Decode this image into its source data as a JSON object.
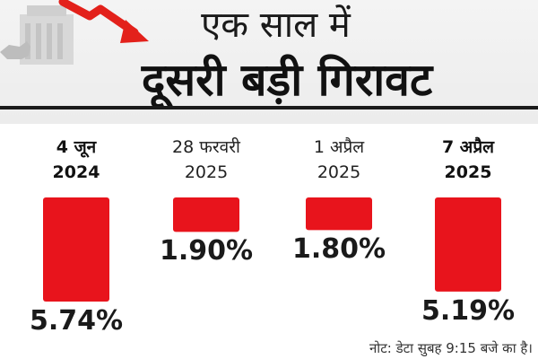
{
  "header": {
    "title_line1": "एक साल में",
    "title_line2": "दूसरी बड़ी गिरावट"
  },
  "colors": {
    "bar": "#e8141c",
    "arrow": "#e3211b",
    "text": "#1a1a1a"
  },
  "chart_data": {
    "type": "bar",
    "orientation": "vertical-downward",
    "categories": [
      {
        "line1": "4 जून",
        "line2": "2024",
        "bold": true
      },
      {
        "line1": "28 फरवरी",
        "line2": "2025",
        "bold": false
      },
      {
        "line1": "1 अप्रैल",
        "line2": "2025",
        "bold": false
      },
      {
        "line1": "7 अप्रैल",
        "line2": "2025",
        "bold": true
      }
    ],
    "values": [
      5.74,
      1.9,
      1.8,
      5.19
    ],
    "value_labels": [
      "5.74%",
      "1.90%",
      "1.80%",
      "5.19%"
    ],
    "unit": "%",
    "grid": false,
    "legend": "none"
  },
  "footnote": "नोट: डेटा सुबह 9:15 बजे का है।"
}
